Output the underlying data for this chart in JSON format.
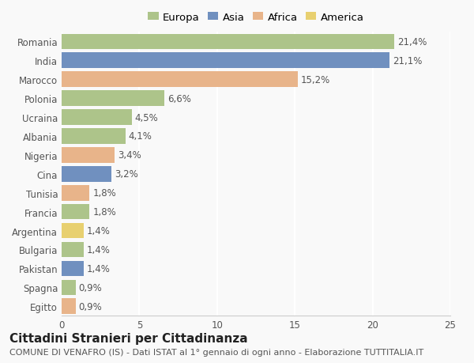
{
  "countries": [
    "Romania",
    "India",
    "Marocco",
    "Polonia",
    "Ucraina",
    "Albania",
    "Nigeria",
    "Cina",
    "Tunisia",
    "Francia",
    "Argentina",
    "Bulgaria",
    "Pakistan",
    "Spagna",
    "Egitto"
  ],
  "values": [
    21.4,
    21.1,
    15.2,
    6.6,
    4.5,
    4.1,
    3.4,
    3.2,
    1.8,
    1.8,
    1.4,
    1.4,
    1.4,
    0.9,
    0.9
  ],
  "labels": [
    "21,4%",
    "21,1%",
    "15,2%",
    "6,6%",
    "4,5%",
    "4,1%",
    "3,4%",
    "3,2%",
    "1,8%",
    "1,8%",
    "1,4%",
    "1,4%",
    "1,4%",
    "0,9%",
    "0,9%"
  ],
  "continents": [
    "Europa",
    "Asia",
    "Africa",
    "Europa",
    "Europa",
    "Europa",
    "Africa",
    "Asia",
    "Africa",
    "Europa",
    "America",
    "Europa",
    "Asia",
    "Europa",
    "Africa"
  ],
  "colors": {
    "Europa": "#adc48a",
    "Asia": "#7090bf",
    "Africa": "#e8b48a",
    "America": "#e8d070"
  },
  "legend_order": [
    "Europa",
    "Asia",
    "Africa",
    "America"
  ],
  "xlim": [
    0,
    25
  ],
  "xticks": [
    0,
    5,
    10,
    15,
    20,
    25
  ],
  "title": "Cittadini Stranieri per Cittadinanza",
  "subtitle": "COMUNE DI VENAFRO (IS) - Dati ISTAT al 1° gennaio di ogni anno - Elaborazione TUTTITALIA.IT",
  "background_color": "#f9f9f9",
  "grid_color": "#ffffff",
  "bar_height": 0.82,
  "title_fontsize": 11,
  "subtitle_fontsize": 8,
  "label_fontsize": 8.5,
  "tick_fontsize": 8.5,
  "legend_fontsize": 9.5
}
